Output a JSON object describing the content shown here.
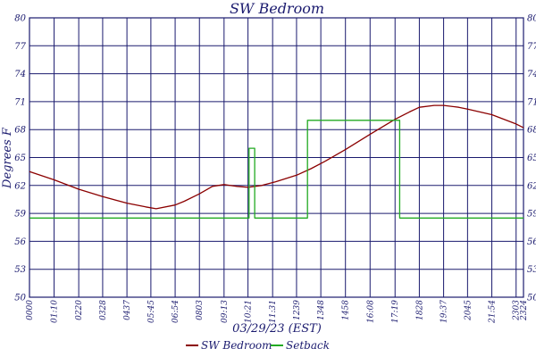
{
  "chart_data": {
    "type": "line",
    "title": "SW Bedroom",
    "xlabel": "03/29/23 (EST)",
    "ylabel": "Degrees F",
    "ylim": [
      50,
      80
    ],
    "yticks": [
      50,
      53,
      56,
      59,
      62,
      65,
      68,
      71,
      74,
      77,
      80
    ],
    "x_range_minutes": [
      0,
      1404
    ],
    "x_ticks": [
      "0000",
      "01:10",
      "0220",
      "0328",
      "0437",
      "05:45",
      "06:54",
      "0803",
      "09:13",
      "10:21",
      "11:31",
      "1239",
      "1348",
      "1458",
      "16:08",
      "17:19",
      "1828",
      "19:37",
      "2045",
      "21:54",
      "2303",
      "2324"
    ],
    "x_tick_minutes": [
      0,
      70,
      140,
      208,
      277,
      345,
      414,
      483,
      553,
      621,
      691,
      759,
      828,
      898,
      968,
      1039,
      1108,
      1177,
      1245,
      1314,
      1383,
      1404
    ],
    "grid": true,
    "legend": "bottom",
    "colors": {
      "grid": "#1a1a6e",
      "sw_bedroom": "#8b0000",
      "setback": "#22aa22"
    },
    "series": [
      {
        "name": "SW Bedroom",
        "x_minutes": [
          0,
          70,
          140,
          208,
          277,
          330,
          360,
          414,
          440,
          483,
          520,
          553,
          590,
          621,
          660,
          700,
          759,
          800,
          840,
          900,
          968,
          1039,
          1080,
          1108,
          1150,
          1177,
          1220,
          1245,
          1314,
          1383,
          1404
        ],
        "values": [
          63.5,
          62.6,
          61.6,
          60.8,
          60.1,
          59.7,
          59.5,
          59.9,
          60.3,
          61.1,
          61.9,
          62.1,
          61.9,
          61.8,
          62.0,
          62.4,
          63.1,
          63.8,
          64.6,
          65.9,
          67.5,
          69.1,
          69.9,
          70.4,
          70.6,
          70.6,
          70.4,
          70.2,
          69.6,
          68.6,
          68.2
        ]
      },
      {
        "name": "Setback",
        "x_minutes": [
          0,
          624,
          624,
          640,
          640,
          790,
          790,
          1052,
          1052,
          1383,
          1383,
          1404
        ],
        "values": [
          58.5,
          58.5,
          66,
          66,
          58.5,
          58.5,
          69,
          69,
          58.5,
          58.5,
          58.5,
          58.5
        ]
      }
    ]
  }
}
